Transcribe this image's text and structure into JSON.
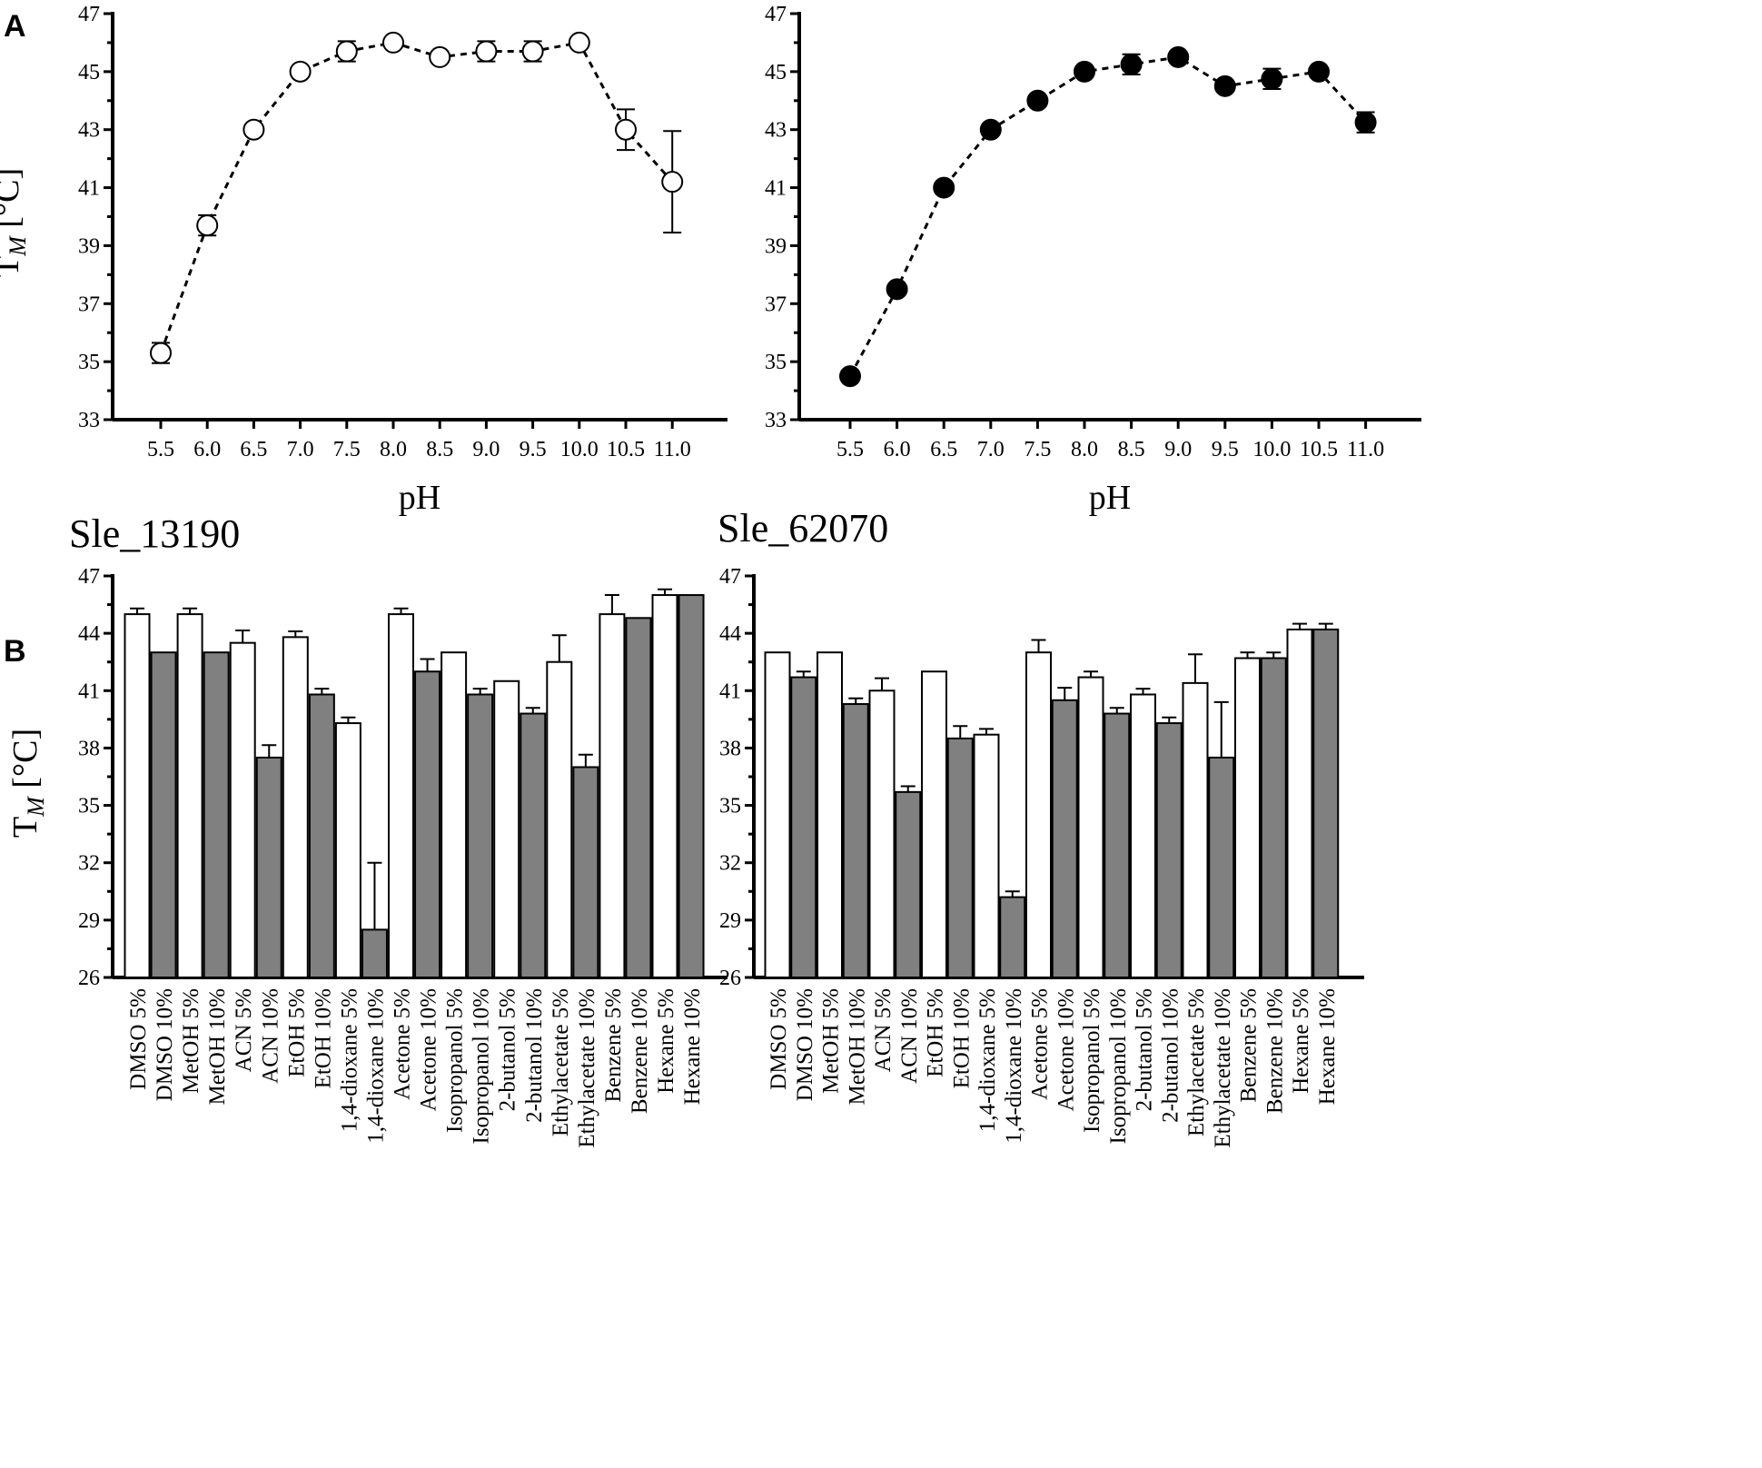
{
  "panels": {
    "A": "A",
    "B": "B"
  },
  "chart_data": [
    {
      "id": "A1",
      "type": "line",
      "title": "",
      "xlabel": "pH",
      "ylabel_main": "T",
      "ylabel_sub": "M",
      "ylabel_tail": " [°C]",
      "categories": [
        "5.5",
        "6.0",
        "6.5",
        "7.0",
        "7.5",
        "8.0",
        "8.5",
        "9.0",
        "9.5",
        "10.0",
        "10.5",
        "11.0"
      ],
      "values": [
        35.3,
        39.7,
        43.0,
        45.0,
        45.7,
        46.0,
        45.5,
        45.7,
        45.7,
        46.0,
        43.0,
        41.2
      ],
      "errors": [
        0.35,
        0.35,
        0.0,
        0.0,
        0.35,
        0.0,
        0.0,
        0.35,
        0.35,
        0.0,
        0.7,
        1.75
      ],
      "marker": "open-circle",
      "ylim": [
        33,
        47
      ],
      "yticks": [
        "33",
        "35",
        "37",
        "39",
        "41",
        "43",
        "45",
        "47"
      ]
    },
    {
      "id": "A2",
      "type": "line",
      "title": "",
      "xlabel": "pH",
      "ylabel_main": "",
      "ylabel_sub": "",
      "ylabel_tail": "",
      "categories": [
        "5.5",
        "6.0",
        "6.5",
        "7.0",
        "7.5",
        "8.0",
        "8.5",
        "9.0",
        "9.5",
        "10.0",
        "10.5",
        "11.0"
      ],
      "values": [
        34.5,
        37.5,
        41.0,
        43.0,
        44.0,
        45.0,
        45.25,
        45.5,
        44.5,
        44.75,
        45.0,
        43.25
      ],
      "errors": [
        0.0,
        0.0,
        0.0,
        0.0,
        0.0,
        0.0,
        0.35,
        0.0,
        0.0,
        0.35,
        0.0,
        0.35
      ],
      "marker": "filled-circle",
      "ylim": [
        33,
        47
      ],
      "yticks": [
        "33",
        "35",
        "37",
        "39",
        "41",
        "43",
        "45",
        "47"
      ]
    },
    {
      "id": "B1",
      "type": "bar",
      "title": "Sle_13190",
      "xlabel": "",
      "ylabel_main": "T",
      "ylabel_sub": "M",
      "ylabel_tail": " [°C]",
      "categories": [
        "DMSO 5%",
        "DMSO 10%",
        "MetOH 5%",
        "MetOH 10%",
        "ACN 5%",
        "ACN 10%",
        "EtOH 5%",
        "EtOH 10%",
        "1,4-dioxane 5%",
        "1,4-dioxane 10%",
        "Acetone 5%",
        "Acetone 10%",
        "Isopropanol 5%",
        "Isopropanol 10%",
        "2-butanol 5%",
        "2-butanol 10%",
        "Ethylacetate 5%",
        "Ethylacetate 10%",
        "Benzene 5%",
        "Benzene 10%",
        "Hexane 5%",
        "Hexane 10%"
      ],
      "values": [
        45.0,
        43.0,
        45.0,
        43.0,
        43.5,
        37.5,
        43.8,
        40.8,
        39.3,
        28.5,
        45.0,
        42.0,
        43.0,
        40.8,
        41.5,
        39.8,
        42.5,
        37.0,
        45.0,
        44.8,
        46.0,
        46.0
      ],
      "errors": [
        0.3,
        0.0,
        0.3,
        0.0,
        0.65,
        0.65,
        0.3,
        0.3,
        0.3,
        3.5,
        0.3,
        0.65,
        0.0,
        0.3,
        0.0,
        0.3,
        1.4,
        0.65,
        1.0,
        0.0,
        0.3,
        0.0
      ],
      "series_fill": [
        "#ffffff",
        "#808080"
      ],
      "ylim": [
        26,
        47
      ],
      "yticks": [
        "26",
        "29",
        "32",
        "35",
        "38",
        "41",
        "44",
        "47"
      ]
    },
    {
      "id": "B2",
      "type": "bar",
      "title": "Sle_62070",
      "xlabel": "",
      "ylabel_main": "",
      "ylabel_sub": "",
      "ylabel_tail": "",
      "categories": [
        "DMSO 5%",
        "DMSO 10%",
        "MetOH 5%",
        "MetOH 10%",
        "ACN 5%",
        "ACN 10%",
        "EtOH 5%",
        "EtOH 10%",
        "1,4-dioxane 5%",
        "1,4-dioxane 10%",
        "Acetone 5%",
        "Acetone 10%",
        "Isopropanol 5%",
        "Isopropanol 10%",
        "2-butanol 5%",
        "2-butanol 10%",
        "Ethylacetate 5%",
        "Ethylacetate 10%",
        "Benzene 5%",
        "Benzene 10%",
        "Hexane 5%",
        "Hexane 10%"
      ],
      "values": [
        43.0,
        41.7,
        43.0,
        40.3,
        41.0,
        35.7,
        42.0,
        38.5,
        38.7,
        30.2,
        43.0,
        40.5,
        41.7,
        39.8,
        40.8,
        39.3,
        41.4,
        37.5,
        42.7,
        42.7,
        44.2,
        44.2
      ],
      "errors": [
        0.0,
        0.3,
        0.0,
        0.3,
        0.65,
        0.3,
        0.0,
        0.65,
        0.3,
        0.3,
        0.65,
        0.65,
        0.3,
        0.3,
        0.3,
        0.3,
        1.5,
        2.9,
        0.3,
        0.3,
        0.3,
        0.3
      ],
      "series_fill": [
        "#ffffff",
        "#808080"
      ],
      "ylim": [
        26,
        47
      ],
      "yticks": [
        "26",
        "29",
        "32",
        "35",
        "38",
        "41",
        "44",
        "47"
      ]
    }
  ]
}
